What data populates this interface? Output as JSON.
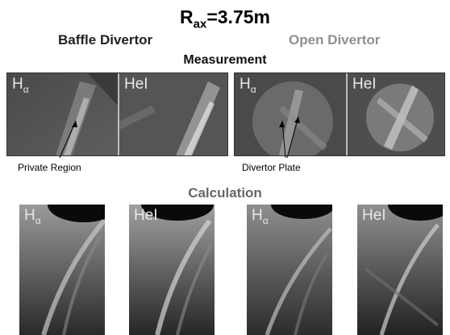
{
  "title": {
    "main": "R",
    "sub": "ax",
    "value": "=3.75m"
  },
  "headers": {
    "baffle": "Baffle Divertor",
    "open": "Open Divertor",
    "measurement": "Measurement",
    "calculation": "Calculation"
  },
  "labels": {
    "h_main": "H",
    "h_sub": "α",
    "hel": "HeI"
  },
  "annotations": {
    "private_region": "Private Region",
    "divertor_plate": "Divertor Plate"
  },
  "colors": {
    "baffle_header": "#222222",
    "open_header": "#909090",
    "calculation_header": "#666666"
  }
}
